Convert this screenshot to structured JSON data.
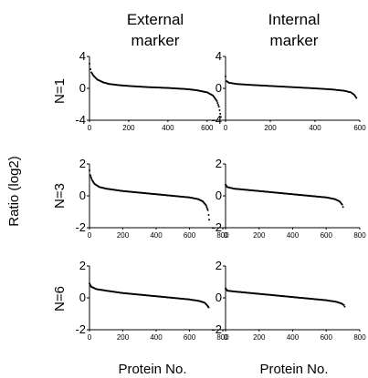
{
  "figure": {
    "column_headers": [
      [
        "External",
        "marker"
      ],
      [
        "Internal",
        "marker"
      ]
    ],
    "row_labels": [
      "N=1",
      "N=3",
      "N=6"
    ],
    "ylabel": "Ratio (log2)",
    "xlabel": "Protein No."
  },
  "chart_data": [
    {
      "type": "scatter",
      "row": "N=1",
      "column": "External marker",
      "xlim": [
        0,
        680
      ],
      "ylim": [
        -4,
        4
      ],
      "xticks": [
        0,
        200,
        400,
        600
      ],
      "yticks": [
        -4,
        0,
        4
      ],
      "points": [
        [
          0,
          3.1
        ],
        [
          5,
          2.4
        ],
        [
          10,
          2.0
        ],
        [
          20,
          1.6
        ],
        [
          40,
          1.1
        ],
        [
          70,
          0.75
        ],
        [
          100,
          0.55
        ],
        [
          150,
          0.4
        ],
        [
          200,
          0.3
        ],
        [
          300,
          0.15
        ],
        [
          400,
          0.05
        ],
        [
          500,
          -0.1
        ],
        [
          550,
          -0.25
        ],
        [
          600,
          -0.5
        ],
        [
          630,
          -0.9
        ],
        [
          650,
          -1.6
        ],
        [
          660,
          -2.3
        ],
        [
          667,
          -3.2
        ],
        [
          670,
          -3.6
        ]
      ]
    },
    {
      "type": "scatter",
      "row": "N=1",
      "column": "Internal marker",
      "xlim": [
        0,
        600
      ],
      "ylim": [
        -4,
        4
      ],
      "xticks": [
        0,
        200,
        400,
        600
      ],
      "yticks": [
        -4,
        0,
        4
      ],
      "points": [
        [
          0,
          1.5
        ],
        [
          5,
          0.9
        ],
        [
          15,
          0.7
        ],
        [
          50,
          0.55
        ],
        [
          100,
          0.45
        ],
        [
          200,
          0.3
        ],
        [
          300,
          0.15
        ],
        [
          400,
          0.0
        ],
        [
          480,
          -0.15
        ],
        [
          530,
          -0.3
        ],
        [
          560,
          -0.5
        ],
        [
          575,
          -0.8
        ],
        [
          585,
          -1.2
        ]
      ]
    },
    {
      "type": "scatter",
      "row": "N=3",
      "column": "External marker",
      "xlim": [
        0,
        800
      ],
      "ylim": [
        -2,
        2
      ],
      "xticks": [
        0,
        200,
        400,
        600,
        800
      ],
      "yticks": [
        -2,
        0,
        2
      ],
      "points": [
        [
          0,
          1.6
        ],
        [
          5,
          1.3
        ],
        [
          15,
          1.0
        ],
        [
          30,
          0.75
        ],
        [
          60,
          0.55
        ],
        [
          100,
          0.45
        ],
        [
          200,
          0.3
        ],
        [
          300,
          0.2
        ],
        [
          400,
          0.1
        ],
        [
          500,
          0.0
        ],
        [
          600,
          -0.1
        ],
        [
          650,
          -0.2
        ],
        [
          680,
          -0.35
        ],
        [
          700,
          -0.6
        ],
        [
          710,
          -0.9
        ],
        [
          715,
          -1.2
        ],
        [
          718,
          -1.5
        ]
      ]
    },
    {
      "type": "scatter",
      "row": "N=3",
      "column": "Internal marker",
      "xlim": [
        0,
        800
      ],
      "ylim": [
        -2,
        2
      ],
      "xticks": [
        0,
        200,
        400,
        600,
        800
      ],
      "yticks": [
        -2,
        0,
        2
      ],
      "points": [
        [
          0,
          0.7
        ],
        [
          10,
          0.55
        ],
        [
          50,
          0.45
        ],
        [
          100,
          0.4
        ],
        [
          200,
          0.3
        ],
        [
          300,
          0.2
        ],
        [
          400,
          0.1
        ],
        [
          500,
          0.0
        ],
        [
          600,
          -0.1
        ],
        [
          650,
          -0.2
        ],
        [
          680,
          -0.35
        ],
        [
          695,
          -0.55
        ],
        [
          700,
          -0.7
        ]
      ]
    },
    {
      "type": "scatter",
      "row": "N=6",
      "column": "External marker",
      "xlim": [
        0,
        800
      ],
      "ylim": [
        -2,
        2
      ],
      "xticks": [
        0,
        200,
        400,
        600,
        800
      ],
      "yticks": [
        -2,
        0,
        2
      ],
      "points": [
        [
          0,
          0.9
        ],
        [
          10,
          0.7
        ],
        [
          40,
          0.55
        ],
        [
          100,
          0.45
        ],
        [
          200,
          0.3
        ],
        [
          300,
          0.2
        ],
        [
          400,
          0.1
        ],
        [
          500,
          0.0
        ],
        [
          600,
          -0.1
        ],
        [
          660,
          -0.2
        ],
        [
          690,
          -0.3
        ],
        [
          705,
          -0.45
        ],
        [
          715,
          -0.6
        ]
      ]
    },
    {
      "type": "scatter",
      "row": "N=6",
      "column": "Internal marker",
      "xlim": [
        0,
        800
      ],
      "ylim": [
        -2,
        2
      ],
      "xticks": [
        0,
        200,
        400,
        600,
        800
      ],
      "yticks": [
        -2,
        0,
        2
      ],
      "points": [
        [
          0,
          0.6
        ],
        [
          10,
          0.45
        ],
        [
          50,
          0.4
        ],
        [
          100,
          0.35
        ],
        [
          200,
          0.25
        ],
        [
          300,
          0.15
        ],
        [
          400,
          0.05
        ],
        [
          500,
          -0.05
        ],
        [
          600,
          -0.15
        ],
        [
          660,
          -0.25
        ],
        [
          690,
          -0.35
        ],
        [
          705,
          -0.45
        ],
        [
          710,
          -0.55
        ]
      ]
    }
  ]
}
